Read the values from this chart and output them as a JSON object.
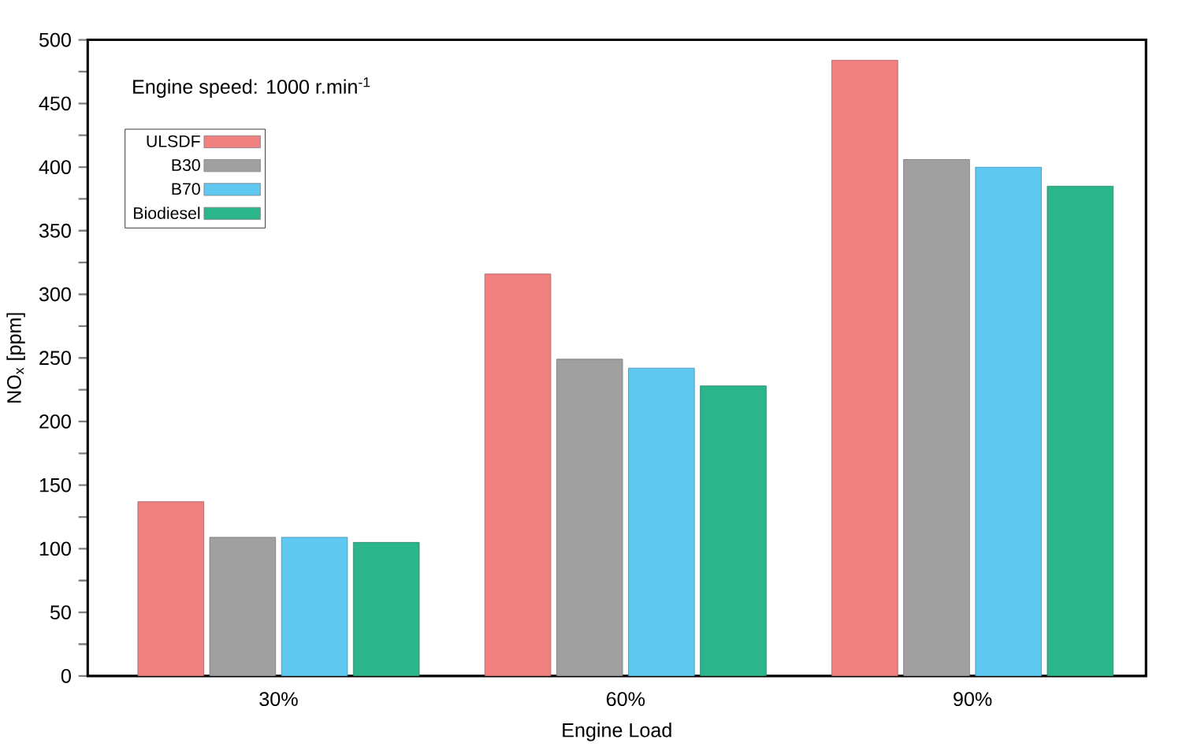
{
  "chart_data": {
    "type": "bar",
    "xlabel": "Engine Load",
    "ylabel": "NO$_{x}$ [ppm]",
    "categories": [
      "30%",
      "60%",
      "90%"
    ],
    "series": [
      {
        "name": "ULSDF",
        "color": "#f08080",
        "values": [
          137,
          316,
          484
        ]
      },
      {
        "name": "B30",
        "color": "#a0a0a0",
        "values": [
          109,
          249,
          406
        ]
      },
      {
        "name": "B70",
        "color": "#5ec8f0",
        "values": [
          109,
          242,
          400
        ]
      },
      {
        "name": "Biodiesel",
        "color": "#2bb58a",
        "values": [
          105,
          228,
          385
        ]
      }
    ],
    "ylim": [
      0,
      500
    ],
    "yticks": [
      0,
      50,
      100,
      150,
      200,
      250,
      300,
      350,
      400,
      450,
      500
    ],
    "legend": "top left",
    "annotations": [
      "Engine speed: 1000 r.min$^{-1}$"
    ]
  }
}
